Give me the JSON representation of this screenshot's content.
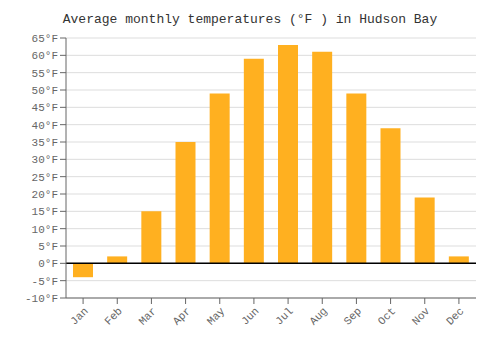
{
  "chart_data": {
    "type": "bar",
    "title": "Average monthly temperatures (°F ) in Hudson Bay",
    "categories": [
      "Jan",
      "Feb",
      "Mar",
      "Apr",
      "May",
      "Jun",
      "Jul",
      "Aug",
      "Sep",
      "Oct",
      "Nov",
      "Dec"
    ],
    "values": [
      -4,
      2,
      15,
      35,
      49,
      59,
      63,
      61,
      49,
      39,
      19,
      2
    ],
    "color": "#FFB020",
    "ylim": [
      -10,
      65
    ],
    "yticks": [
      {
        "value": -10,
        "label": "-10°F"
      },
      {
        "value": -5,
        "label": "-5°F"
      },
      {
        "value": 0,
        "label": "0°F"
      },
      {
        "value": 5,
        "label": "5°F"
      },
      {
        "value": 10,
        "label": "10°F"
      },
      {
        "value": 15,
        "label": "15°F"
      },
      {
        "value": 20,
        "label": "20°F"
      },
      {
        "value": 25,
        "label": "25°F"
      },
      {
        "value": 30,
        "label": "30°F"
      },
      {
        "value": 35,
        "label": "35°F"
      },
      {
        "value": 40,
        "label": "40°F"
      },
      {
        "value": 45,
        "label": "45°F"
      },
      {
        "value": 50,
        "label": "50°F"
      },
      {
        "value": 55,
        "label": "55°F"
      },
      {
        "value": 60,
        "label": "60°F"
      },
      {
        "value": 65,
        "label": "65°F"
      }
    ],
    "grid": true
  }
}
